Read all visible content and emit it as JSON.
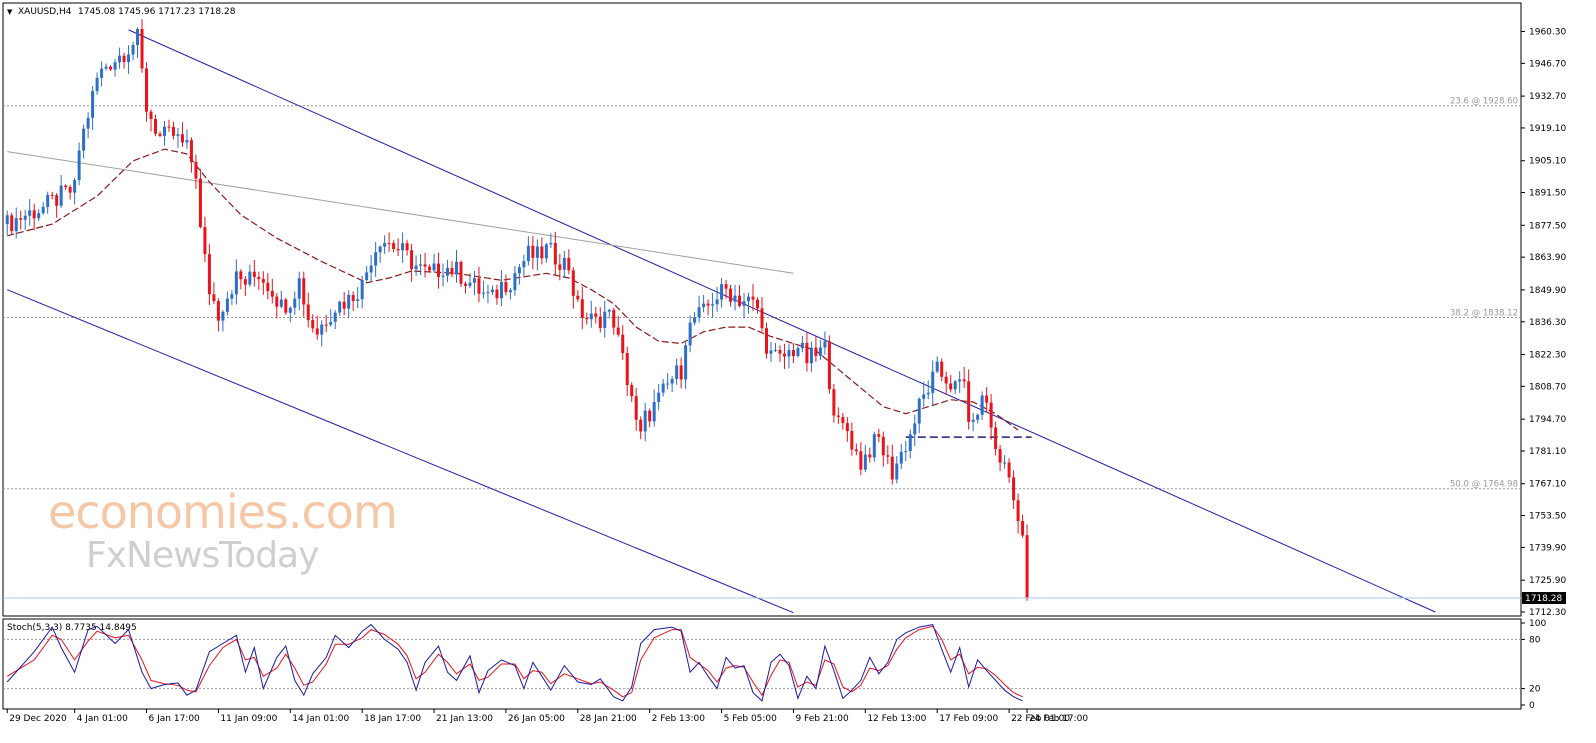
{
  "header": {
    "symbol": "XAUUSD,H4",
    "ohlc": "1745.08 1745.96 1717.23 1718.28",
    "arrow": "▼"
  },
  "watermark": {
    "line1": "economies.com",
    "line2": "FxNewsToday"
  },
  "colors": {
    "bull": "#2d6ec6",
    "bear": "#e8141b",
    "channel": "#1f1fa6",
    "ma": "#8b1a1a",
    "trendline": "#a0a0a0",
    "fib": "#9a9a9a",
    "stoch_main": "#1a1aa6",
    "stoch_signal": "#e8141b",
    "price_line": "#a8c8e8"
  },
  "chart_data": {
    "type": "candlestick",
    "symbol": "XAUUSD",
    "timeframe": "H4",
    "y_ticks": [
      "1960.30",
      "1946.70",
      "1932.70",
      "1919.10",
      "1905.10",
      "1891.50",
      "1877.50",
      "1863.90",
      "1849.90",
      "1836.30",
      "1822.30",
      "1808.70",
      "1794.70",
      "1781.10",
      "1767.10",
      "1753.50",
      "1739.90",
      "1725.90",
      "1712.30"
    ],
    "ylim": [
      1712.3,
      1960.3
    ],
    "x_ticks": [
      "29 Dec 2020",
      "4 Jan 01:00",
      "6 Jan 17:00",
      "11 Jan 09:00",
      "14 Jan 01:00",
      "18 Jan 17:00",
      "21 Jan 13:00",
      "26 Jan 05:00",
      "28 Jan 21:00",
      "2 Feb 13:00",
      "5 Feb 05:00",
      "9 Feb 21:00",
      "12 Feb 13:00",
      "17 Feb 09:00",
      "22 Feb 01:00",
      "24 Feb 17:00"
    ],
    "last_price": "1718.28",
    "fibonacci": [
      {
        "label": "23.6 @ 1928.60",
        "price": 1928.6
      },
      {
        "label": "38.2 @ 1838.12",
        "price": 1838.12
      },
      {
        "label": "50.0 @ 1764.98",
        "price": 1764.98
      }
    ],
    "price_path": [
      [
        0,
        1878
      ],
      [
        4,
        1882
      ],
      [
        8,
        1885
      ],
      [
        12,
        1890
      ],
      [
        15,
        1893
      ],
      [
        16,
        1910
      ],
      [
        18,
        1925
      ],
      [
        20,
        1940
      ],
      [
        22,
        1946
      ],
      [
        25,
        1950
      ],
      [
        29,
        1957
      ],
      [
        31,
        1928
      ],
      [
        34,
        1915
      ],
      [
        37,
        1916
      ],
      [
        40,
        1910
      ],
      [
        42,
        1900
      ],
      [
        43,
        1875
      ],
      [
        45,
        1850
      ],
      [
        47,
        1840
      ],
      [
        49,
        1848
      ],
      [
        51,
        1855
      ],
      [
        53,
        1853
      ],
      [
        56,
        1857
      ],
      [
        59,
        1850
      ],
      [
        61,
        1843
      ],
      [
        63,
        1846
      ],
      [
        65,
        1854
      ],
      [
        67,
        1838
      ],
      [
        69,
        1832
      ],
      [
        71,
        1838
      ],
      [
        73,
        1843
      ],
      [
        76,
        1846
      ],
      [
        79,
        1852
      ],
      [
        81,
        1864
      ],
      [
        83,
        1872
      ],
      [
        85,
        1870
      ],
      [
        88,
        1866
      ],
      [
        91,
        1860
      ],
      [
        94,
        1856
      ],
      [
        97,
        1860
      ],
      [
        100,
        1858
      ],
      [
        103,
        1853
      ],
      [
        106,
        1848
      ],
      [
        108,
        1846
      ],
      [
        110,
        1852
      ],
      [
        112,
        1854
      ],
      [
        114,
        1860
      ],
      [
        116,
        1865
      ],
      [
        118,
        1864
      ],
      [
        120,
        1867
      ],
      [
        123,
        1863
      ],
      [
        125,
        1860
      ],
      [
        126,
        1850
      ],
      [
        127,
        1842
      ],
      [
        129,
        1838
      ],
      [
        131,
        1836
      ],
      [
        133,
        1840
      ],
      [
        135,
        1837
      ],
      [
        136,
        1828
      ],
      [
        137,
        1820
      ],
      [
        138,
        1812
      ],
      [
        139,
        1805
      ],
      [
        140,
        1792
      ],
      [
        141,
        1787
      ],
      [
        142,
        1795
      ],
      [
        144,
        1800
      ],
      [
        146,
        1806
      ],
      [
        148,
        1812
      ],
      [
        150,
        1816
      ],
      [
        151,
        1830
      ],
      [
        153,
        1838
      ],
      [
        155,
        1840
      ],
      [
        157,
        1846
      ],
      [
        160,
        1850
      ],
      [
        163,
        1846
      ],
      [
        165,
        1845
      ],
      [
        167,
        1842
      ],
      [
        168,
        1832
      ],
      [
        170,
        1822
      ],
      [
        172,
        1820
      ],
      [
        174,
        1823
      ],
      [
        176,
        1826
      ],
      [
        178,
        1820
      ],
      [
        180,
        1822
      ],
      [
        182,
        1825
      ],
      [
        183,
        1812
      ],
      [
        184,
        1800
      ],
      [
        185,
        1792
      ],
      [
        187,
        1790
      ],
      [
        189,
        1780
      ],
      [
        190,
        1776
      ],
      [
        192,
        1782
      ],
      [
        194,
        1786
      ],
      [
        196,
        1776
      ],
      [
        197,
        1772
      ],
      [
        199,
        1780
      ],
      [
        201,
        1788
      ],
      [
        203,
        1800
      ],
      [
        205,
        1808
      ],
      [
        207,
        1815
      ],
      [
        209,
        1812
      ],
      [
        211,
        1808
      ],
      [
        213,
        1810
      ],
      [
        214,
        1796
      ],
      [
        215,
        1790
      ],
      [
        216,
        1800
      ],
      [
        218,
        1803
      ],
      [
        219,
        1790
      ],
      [
        220,
        1782
      ],
      [
        222,
        1774
      ],
      [
        223,
        1770
      ],
      [
        224,
        1760
      ],
      [
        225,
        1755
      ],
      [
        226,
        1745
      ],
      [
        227,
        1718
      ]
    ],
    "ma_path": [
      [
        0,
        1873
      ],
      [
        10,
        1878
      ],
      [
        20,
        1890
      ],
      [
        28,
        1905
      ],
      [
        35,
        1910
      ],
      [
        40,
        1908
      ],
      [
        45,
        1896
      ],
      [
        52,
        1882
      ],
      [
        60,
        1872
      ],
      [
        70,
        1862
      ],
      [
        80,
        1853
      ],
      [
        85,
        1855
      ],
      [
        90,
        1858
      ],
      [
        100,
        1857
      ],
      [
        110,
        1854
      ],
      [
        120,
        1857
      ],
      [
        125,
        1855
      ],
      [
        130,
        1850
      ],
      [
        135,
        1844
      ],
      [
        140,
        1834
      ],
      [
        145,
        1828
      ],
      [
        150,
        1827
      ],
      [
        155,
        1832
      ],
      [
        160,
        1834
      ],
      [
        165,
        1834
      ],
      [
        170,
        1830
      ],
      [
        175,
        1827
      ],
      [
        180,
        1824
      ],
      [
        185,
        1816
      ],
      [
        190,
        1808
      ],
      [
        195,
        1800
      ],
      [
        200,
        1797
      ],
      [
        205,
        1800
      ],
      [
        210,
        1803
      ],
      [
        215,
        1802
      ],
      [
        220,
        1797
      ],
      [
        225,
        1790
      ]
    ],
    "candle_span": [
      0,
      227
    ],
    "extra_bars_right": 110,
    "channel_upper": [
      [
        27,
        1961
      ],
      [
        227,
        1790
      ]
    ],
    "channel_lower": [
      [
        0,
        1850
      ],
      [
        175,
        1712
      ]
    ],
    "trend_line": [
      [
        0,
        1909
      ],
      [
        175,
        1857
      ]
    ],
    "support_line": {
      "price": 1787,
      "from": 200,
      "to": 228
    },
    "stochastic": {
      "label": "Stoch(5,3,3) 8.7735 14.8495",
      "y_ticks": [
        "100",
        "80",
        "20",
        "0"
      ],
      "levels": [
        80,
        20
      ],
      "main_path": [
        [
          0,
          28
        ],
        [
          6,
          65
        ],
        [
          10,
          95
        ],
        [
          12,
          70
        ],
        [
          15,
          40
        ],
        [
          18,
          92
        ],
        [
          20,
          96
        ],
        [
          24,
          75
        ],
        [
          27,
          92
        ],
        [
          30,
          40
        ],
        [
          32,
          20
        ],
        [
          35,
          25
        ],
        [
          38,
          27
        ],
        [
          40,
          12
        ],
        [
          42,
          18
        ],
        [
          45,
          65
        ],
        [
          48,
          75
        ],
        [
          51,
          85
        ],
        [
          53,
          40
        ],
        [
          55,
          70
        ],
        [
          57,
          20
        ],
        [
          60,
          58
        ],
        [
          62,
          72
        ],
        [
          64,
          30
        ],
        [
          66,
          12
        ],
        [
          68,
          38
        ],
        [
          71,
          58
        ],
        [
          73,
          85
        ],
        [
          76,
          70
        ],
        [
          79,
          90
        ],
        [
          81,
          98
        ],
        [
          84,
          80
        ],
        [
          87,
          68
        ],
        [
          89,
          52
        ],
        [
          91,
          18
        ],
        [
          93,
          52
        ],
        [
          96,
          72
        ],
        [
          98,
          40
        ],
        [
          100,
          30
        ],
        [
          103,
          60
        ],
        [
          105,
          15
        ],
        [
          107,
          42
        ],
        [
          110,
          55
        ],
        [
          113,
          48
        ],
        [
          115,
          20
        ],
        [
          117,
          52
        ],
        [
          119,
          35
        ],
        [
          121,
          18
        ],
        [
          124,
          48
        ],
        [
          127,
          28
        ],
        [
          130,
          25
        ],
        [
          132,
          32
        ],
        [
          135,
          10
        ],
        [
          137,
          5
        ],
        [
          139,
          22
        ],
        [
          141,
          75
        ],
        [
          144,
          92
        ],
        [
          148,
          95
        ],
        [
          150,
          90
        ],
        [
          152,
          40
        ],
        [
          154,
          52
        ],
        [
          156,
          35
        ],
        [
          158,
          20
        ],
        [
          160,
          58
        ],
        [
          162,
          45
        ],
        [
          164,
          48
        ],
        [
          166,
          15
        ],
        [
          168,
          5
        ],
        [
          170,
          52
        ],
        [
          172,
          62
        ],
        [
          174,
          48
        ],
        [
          176,
          8
        ],
        [
          178,
          35
        ],
        [
          180,
          20
        ],
        [
          182,
          72
        ],
        [
          184,
          42
        ],
        [
          186,
          8
        ],
        [
          188,
          18
        ],
        [
          190,
          30
        ],
        [
          192,
          58
        ],
        [
          194,
          38
        ],
        [
          196,
          52
        ],
        [
          198,
          80
        ],
        [
          200,
          88
        ],
        [
          203,
          95
        ],
        [
          206,
          98
        ],
        [
          208,
          68
        ],
        [
          210,
          40
        ],
        [
          212,
          70
        ],
        [
          214,
          22
        ],
        [
          216,
          55
        ],
        [
          218,
          42
        ],
        [
          220,
          30
        ],
        [
          222,
          18
        ],
        [
          224,
          10
        ],
        [
          226,
          5
        ]
      ],
      "signal_path": [
        [
          0,
          35
        ],
        [
          6,
          55
        ],
        [
          10,
          85
        ],
        [
          12,
          80
        ],
        [
          15,
          55
        ],
        [
          18,
          78
        ],
        [
          20,
          90
        ],
        [
          24,
          82
        ],
        [
          27,
          85
        ],
        [
          30,
          55
        ],
        [
          32,
          30
        ],
        [
          35,
          26
        ],
        [
          38,
          24
        ],
        [
          40,
          18
        ],
        [
          42,
          16
        ],
        [
          45,
          48
        ],
        [
          48,
          70
        ],
        [
          51,
          80
        ],
        [
          53,
          55
        ],
        [
          55,
          58
        ],
        [
          57,
          35
        ],
        [
          60,
          45
        ],
        [
          62,
          62
        ],
        [
          64,
          45
        ],
        [
          66,
          24
        ],
        [
          68,
          28
        ],
        [
          71,
          50
        ],
        [
          73,
          74
        ],
        [
          76,
          74
        ],
        [
          79,
          82
        ],
        [
          81,
          92
        ],
        [
          84,
          86
        ],
        [
          87,
          74
        ],
        [
          89,
          60
        ],
        [
          91,
          32
        ],
        [
          93,
          40
        ],
        [
          96,
          62
        ],
        [
          98,
          52
        ],
        [
          100,
          38
        ],
        [
          103,
          50
        ],
        [
          105,
          30
        ],
        [
          107,
          34
        ],
        [
          110,
          50
        ],
        [
          113,
          50
        ],
        [
          115,
          32
        ],
        [
          117,
          42
        ],
        [
          119,
          40
        ],
        [
          121,
          26
        ],
        [
          124,
          38
        ],
        [
          127,
          32
        ],
        [
          130,
          26
        ],
        [
          132,
          28
        ],
        [
          135,
          18
        ],
        [
          137,
          10
        ],
        [
          139,
          15
        ],
        [
          141,
          55
        ],
        [
          144,
          82
        ],
        [
          148,
          92
        ],
        [
          150,
          92
        ],
        [
          152,
          58
        ],
        [
          154,
          50
        ],
        [
          156,
          42
        ],
        [
          158,
          28
        ],
        [
          160,
          45
        ],
        [
          162,
          48
        ],
        [
          164,
          46
        ],
        [
          166,
          28
        ],
        [
          168,
          12
        ],
        [
          170,
          36
        ],
        [
          172,
          55
        ],
        [
          174,
          52
        ],
        [
          176,
          22
        ],
        [
          178,
          28
        ],
        [
          180,
          24
        ],
        [
          182,
          55
        ],
        [
          184,
          50
        ],
        [
          186,
          22
        ],
        [
          188,
          16
        ],
        [
          190,
          24
        ],
        [
          192,
          45
        ],
        [
          194,
          42
        ],
        [
          196,
          48
        ],
        [
          198,
          68
        ],
        [
          200,
          82
        ],
        [
          203,
          92
        ],
        [
          206,
          96
        ],
        [
          208,
          80
        ],
        [
          210,
          55
        ],
        [
          212,
          62
        ],
        [
          214,
          38
        ],
        [
          216,
          46
        ],
        [
          218,
          44
        ],
        [
          220,
          36
        ],
        [
          222,
          25
        ],
        [
          224,
          15
        ],
        [
          226,
          10
        ]
      ]
    }
  }
}
